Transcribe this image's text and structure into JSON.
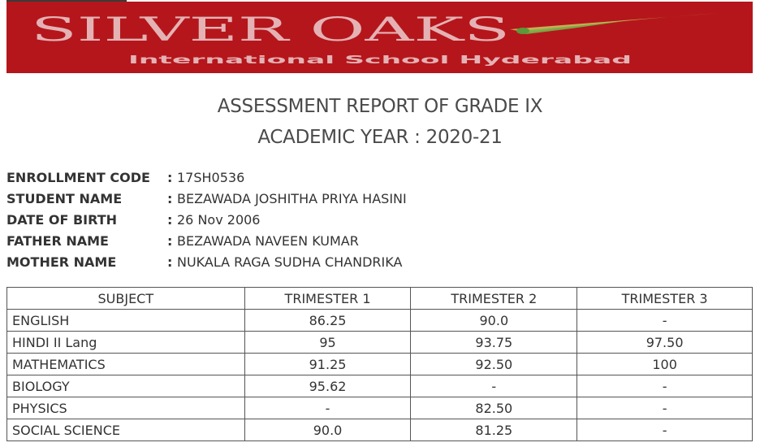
{
  "header": {
    "title_line1": "ASSESSMENT REPORT OF GRADE IX",
    "title_line2": "ACADEMIC YEAR : 2020-21"
  },
  "banner": {
    "logo_text": "SILVER OAKS",
    "logo_subtext": "International School Hyderabad",
    "background_color": "#b5161b"
  },
  "student": {
    "fields": [
      {
        "label": "ENROLLMENT CODE",
        "value": "17SH0536"
      },
      {
        "label": "STUDENT NAME",
        "value": "BEZAWADA JOSHITHA PRIYA HASINI"
      },
      {
        "label": "DATE OF BIRTH",
        "value": "26 Nov 2006"
      },
      {
        "label": "FATHER NAME",
        "value": "BEZAWADA NAVEEN KUMAR"
      },
      {
        "label": "MOTHER NAME",
        "value": "NUKALA RAGA SUDHA CHANDRIKA"
      }
    ]
  },
  "marks": {
    "columns": [
      "SUBJECT",
      "TRIMESTER 1",
      "TRIMESTER 2",
      "TRIMESTER 3"
    ],
    "rows": [
      [
        "ENGLISH",
        "86.25",
        "90.0",
        "-"
      ],
      [
        "HINDI II Lang",
        "95",
        "93.75",
        "97.50"
      ],
      [
        "MATHEMATICS",
        "91.25",
        "92.50",
        "100"
      ],
      [
        "BIOLOGY",
        "95.62",
        "-",
        "-"
      ],
      [
        "PHYSICS",
        "-",
        "82.50",
        "-"
      ],
      [
        "SOCIAL SCIENCE",
        "90.0",
        "81.25",
        "-"
      ]
    ]
  }
}
